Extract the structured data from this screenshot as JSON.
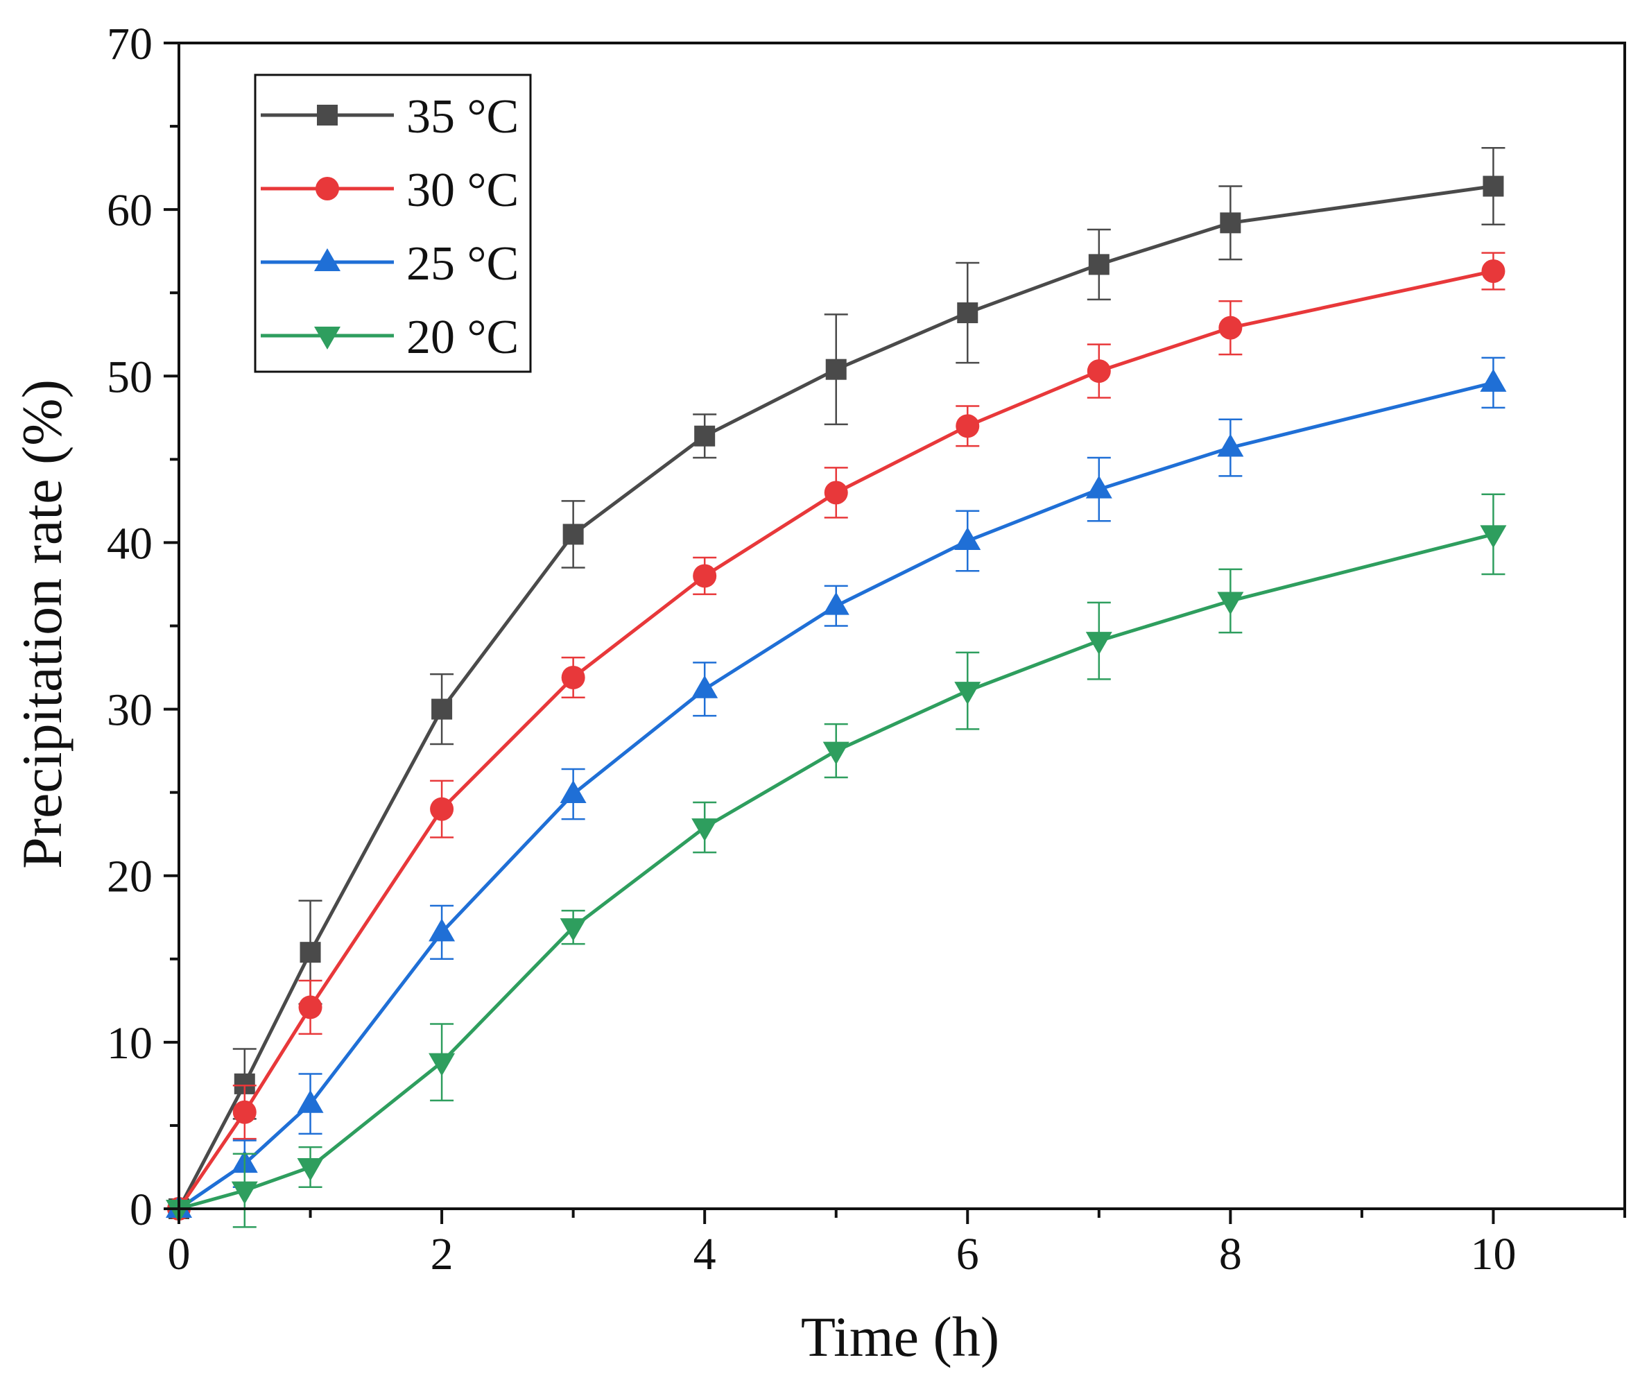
{
  "chart_data": {
    "type": "line",
    "title": "",
    "xlabel": "Time (h)",
    "ylabel": "Precipitation rate (%)",
    "xlim": [
      0,
      11
    ],
    "ylim": [
      0,
      70
    ],
    "xticks": [
      0,
      2,
      4,
      6,
      8,
      10
    ],
    "xticks_minor": [
      1,
      3,
      5,
      7,
      9,
      11
    ],
    "yticks": [
      0,
      10,
      20,
      30,
      40,
      50,
      60,
      70
    ],
    "yticks_minor": [
      5,
      15,
      25,
      35,
      45,
      55,
      65
    ],
    "grid": false,
    "legend_position": "top-left",
    "x": [
      0,
      0.5,
      1,
      2,
      3,
      4,
      5,
      6,
      7,
      8,
      10
    ],
    "series": [
      {
        "name": "35 °C",
        "color": "#4a4a4a",
        "marker": "square",
        "values": [
          0,
          7.5,
          15.4,
          30.0,
          40.5,
          46.4,
          50.4,
          53.8,
          56.7,
          59.2,
          61.4
        ],
        "errors": [
          0,
          2.1,
          3.1,
          2.1,
          2.0,
          1.3,
          3.3,
          3.0,
          2.1,
          2.2,
          2.3
        ]
      },
      {
        "name": "30 °C",
        "color": "#e8383a",
        "marker": "circle",
        "values": [
          0,
          5.8,
          12.1,
          24.0,
          31.9,
          38.0,
          43.0,
          47.0,
          50.3,
          52.9,
          56.3
        ],
        "errors": [
          0,
          1.6,
          1.6,
          1.7,
          1.2,
          1.1,
          1.5,
          1.2,
          1.6,
          1.6,
          1.1
        ]
      },
      {
        "name": "25 °C",
        "color": "#1f6fd6",
        "marker": "triangle-up",
        "values": [
          0,
          2.7,
          6.3,
          16.6,
          24.9,
          31.2,
          36.2,
          40.1,
          43.2,
          45.7,
          49.6
        ],
        "errors": [
          0,
          1.4,
          1.8,
          1.6,
          1.5,
          1.6,
          1.2,
          1.8,
          1.9,
          1.7,
          1.5
        ]
      },
      {
        "name": "20 °C",
        "color": "#2e9e5e",
        "marker": "triangle-down",
        "values": [
          0,
          1.1,
          2.5,
          8.8,
          16.9,
          22.9,
          27.5,
          31.1,
          34.1,
          36.5,
          40.5
        ],
        "errors": [
          0,
          2.2,
          1.2,
          2.3,
          1.0,
          1.5,
          1.6,
          2.3,
          2.3,
          1.9,
          2.4
        ]
      }
    ]
  }
}
